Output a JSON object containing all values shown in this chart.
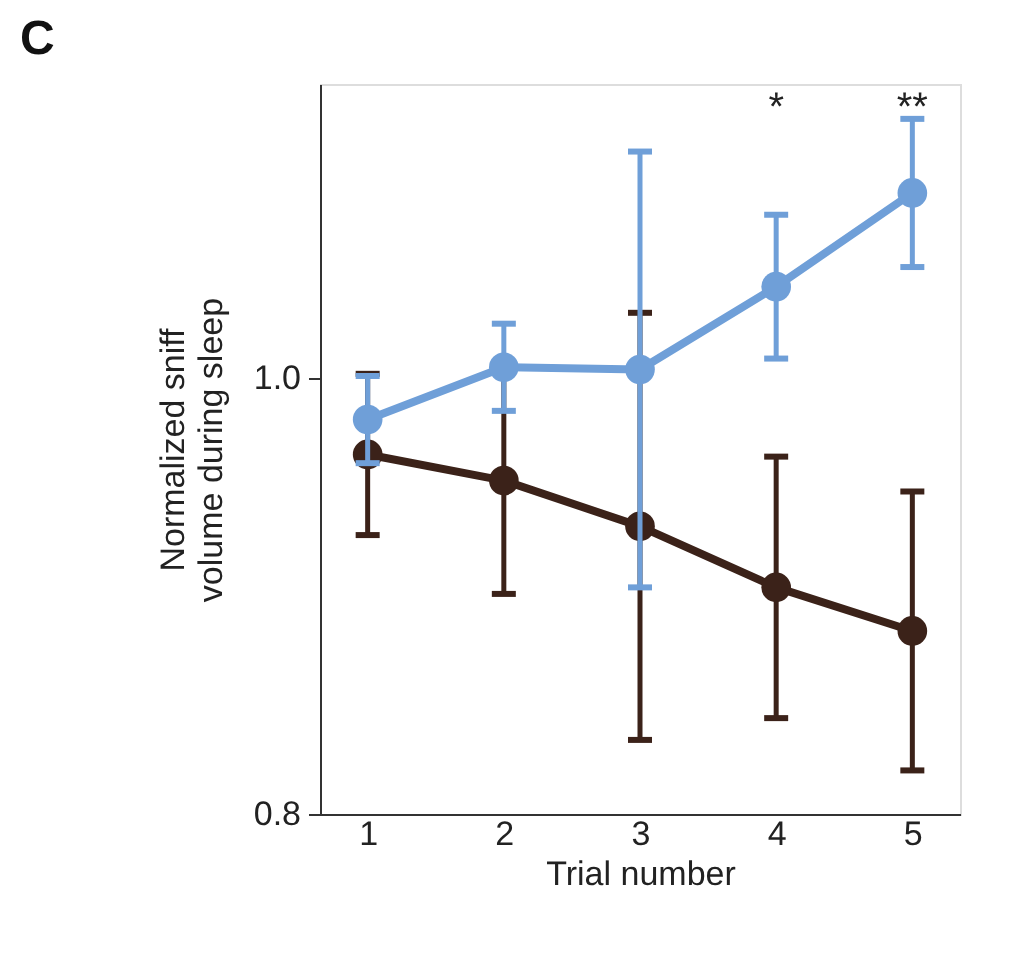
{
  "chart_data": {
    "type": "line",
    "title": "C",
    "xlabel": "Trial number",
    "ylabel": "Normalized sniff\nvolume during sleep",
    "categories": [
      "1",
      "2",
      "3",
      "4",
      "5"
    ],
    "series": [
      {
        "color": "#3b2219",
        "values": [
          0.965,
          0.953,
          0.932,
          0.904,
          0.884
        ],
        "errors": [
          0.037,
          0.052,
          0.098,
          0.06,
          0.064
        ]
      },
      {
        "color": "#6f9fd8",
        "values": [
          0.981,
          1.005,
          1.004,
          1.042,
          1.085
        ],
        "errors": [
          0.02,
          0.02,
          0.1,
          0.033,
          0.034
        ]
      }
    ],
    "ylim": [
      0.8,
      1.135
    ],
    "yticks": [
      {
        "value": 0.8,
        "label": "0.8"
      },
      {
        "value": 1.0,
        "label": "1.0"
      }
    ],
    "grid": false,
    "legend": false,
    "marker": "circle",
    "line_style": "solid",
    "annotations": [
      "*",
      "**"
    ]
  }
}
